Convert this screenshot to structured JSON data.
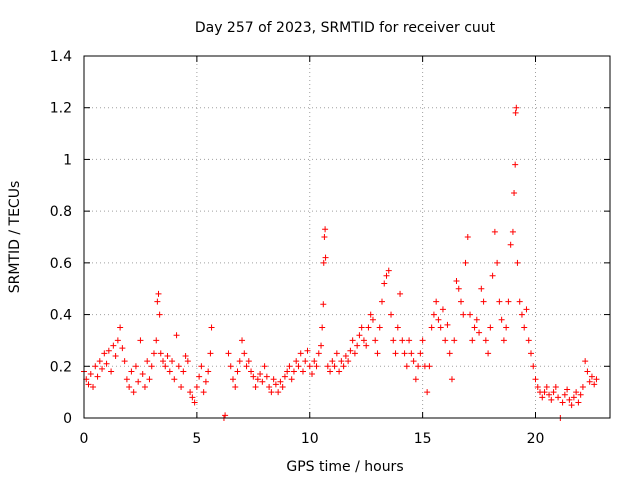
{
  "chart_data": {
    "type": "scatter",
    "title": "Day 257 of 2023, SRMTID for receiver cuut",
    "xlabel": "GPS time / hours",
    "ylabel": "SRMTID / TECUs",
    "xlim": [
      0,
      23.3
    ],
    "ylim": [
      0,
      1.4
    ],
    "xticks": [
      0,
      5,
      10,
      15,
      20
    ],
    "xtick_labels": [
      "0",
      "5",
      "10",
      "15",
      "20"
    ],
    "yticks": [
      0,
      0.2,
      0.4,
      0.6,
      0.8,
      1.0,
      1.2,
      1.4
    ],
    "ytick_labels": [
      "0",
      "0.2",
      "0.4",
      "0.6",
      "0.8",
      "1",
      "1.2",
      "1.4"
    ],
    "grid": true,
    "marker": "plus",
    "series": [
      {
        "name": "SRMTID",
        "color": "#ff0000",
        "points": [
          [
            0.0,
            0.18
          ],
          [
            0.1,
            0.15
          ],
          [
            0.2,
            0.13
          ],
          [
            0.3,
            0.17
          ],
          [
            0.4,
            0.12
          ],
          [
            0.5,
            0.2
          ],
          [
            0.6,
            0.16
          ],
          [
            0.7,
            0.22
          ],
          [
            0.8,
            0.19
          ],
          [
            0.9,
            0.25
          ],
          [
            1.0,
            0.21
          ],
          [
            1.1,
            0.26
          ],
          [
            1.2,
            0.18
          ],
          [
            1.3,
            0.28
          ],
          [
            1.4,
            0.24
          ],
          [
            1.5,
            0.3
          ],
          [
            1.6,
            0.35
          ],
          [
            1.7,
            0.27
          ],
          [
            1.8,
            0.22
          ],
          [
            1.9,
            0.15
          ],
          [
            2.0,
            0.12
          ],
          [
            2.1,
            0.18
          ],
          [
            2.2,
            0.1
          ],
          [
            2.3,
            0.2
          ],
          [
            2.4,
            0.14
          ],
          [
            2.5,
            0.3
          ],
          [
            2.6,
            0.17
          ],
          [
            2.7,
            0.12
          ],
          [
            2.8,
            0.22
          ],
          [
            2.9,
            0.15
          ],
          [
            3.0,
            0.2
          ],
          [
            3.1,
            0.25
          ],
          [
            3.2,
            0.3
          ],
          [
            3.25,
            0.45
          ],
          [
            3.3,
            0.48
          ],
          [
            3.35,
            0.4
          ],
          [
            3.4,
            0.25
          ],
          [
            3.5,
            0.22
          ],
          [
            3.6,
            0.2
          ],
          [
            3.7,
            0.24
          ],
          [
            3.8,
            0.18
          ],
          [
            3.9,
            0.22
          ],
          [
            4.0,
            0.15
          ],
          [
            4.1,
            0.32
          ],
          [
            4.2,
            0.2
          ],
          [
            4.3,
            0.12
          ],
          [
            4.4,
            0.18
          ],
          [
            4.5,
            0.24
          ],
          [
            4.6,
            0.22
          ],
          [
            4.7,
            0.1
          ],
          [
            4.8,
            0.08
          ],
          [
            4.9,
            0.06
          ],
          [
            5.0,
            0.12
          ],
          [
            5.1,
            0.16
          ],
          [
            5.2,
            0.2
          ],
          [
            5.3,
            0.1
          ],
          [
            5.4,
            0.14
          ],
          [
            5.5,
            0.18
          ],
          [
            5.6,
            0.25
          ],
          [
            5.65,
            0.35
          ],
          [
            6.2,
            0.0
          ],
          [
            6.25,
            0.01
          ],
          [
            6.4,
            0.25
          ],
          [
            6.5,
            0.2
          ],
          [
            6.6,
            0.15
          ],
          [
            6.7,
            0.12
          ],
          [
            6.8,
            0.18
          ],
          [
            6.9,
            0.22
          ],
          [
            7.0,
            0.3
          ],
          [
            7.1,
            0.25
          ],
          [
            7.2,
            0.2
          ],
          [
            7.3,
            0.22
          ],
          [
            7.4,
            0.18
          ],
          [
            7.5,
            0.16
          ],
          [
            7.6,
            0.12
          ],
          [
            7.7,
            0.15
          ],
          [
            7.8,
            0.17
          ],
          [
            7.9,
            0.14
          ],
          [
            8.0,
            0.2
          ],
          [
            8.1,
            0.16
          ],
          [
            8.2,
            0.12
          ],
          [
            8.3,
            0.1
          ],
          [
            8.4,
            0.15
          ],
          [
            8.5,
            0.13
          ],
          [
            8.6,
            0.1
          ],
          [
            8.7,
            0.14
          ],
          [
            8.8,
            0.12
          ],
          [
            8.9,
            0.16
          ],
          [
            9.0,
            0.18
          ],
          [
            9.1,
            0.2
          ],
          [
            9.2,
            0.15
          ],
          [
            9.3,
            0.18
          ],
          [
            9.4,
            0.22
          ],
          [
            9.5,
            0.2
          ],
          [
            9.6,
            0.25
          ],
          [
            9.7,
            0.18
          ],
          [
            9.8,
            0.22
          ],
          [
            9.9,
            0.26
          ],
          [
            10.0,
            0.2
          ],
          [
            10.1,
            0.17
          ],
          [
            10.2,
            0.22
          ],
          [
            10.3,
            0.2
          ],
          [
            10.4,
            0.25
          ],
          [
            10.5,
            0.28
          ],
          [
            10.55,
            0.35
          ],
          [
            10.6,
            0.44
          ],
          [
            10.62,
            0.6
          ],
          [
            10.65,
            0.7
          ],
          [
            10.68,
            0.73
          ],
          [
            10.7,
            0.62
          ],
          [
            10.8,
            0.2
          ],
          [
            10.9,
            0.18
          ],
          [
            11.0,
            0.22
          ],
          [
            11.1,
            0.2
          ],
          [
            11.2,
            0.25
          ],
          [
            11.3,
            0.18
          ],
          [
            11.4,
            0.22
          ],
          [
            11.5,
            0.2
          ],
          [
            11.6,
            0.24
          ],
          [
            11.7,
            0.22
          ],
          [
            11.8,
            0.26
          ],
          [
            11.9,
            0.3
          ],
          [
            12.0,
            0.25
          ],
          [
            12.1,
            0.28
          ],
          [
            12.2,
            0.32
          ],
          [
            12.3,
            0.35
          ],
          [
            12.4,
            0.3
          ],
          [
            12.5,
            0.28
          ],
          [
            12.6,
            0.35
          ],
          [
            12.7,
            0.4
          ],
          [
            12.8,
            0.38
          ],
          [
            12.9,
            0.3
          ],
          [
            13.0,
            0.25
          ],
          [
            13.1,
            0.35
          ],
          [
            13.2,
            0.45
          ],
          [
            13.3,
            0.52
          ],
          [
            13.4,
            0.55
          ],
          [
            13.5,
            0.57
          ],
          [
            13.6,
            0.4
          ],
          [
            13.7,
            0.3
          ],
          [
            13.8,
            0.25
          ],
          [
            13.9,
            0.35
          ],
          [
            14.0,
            0.48
          ],
          [
            14.1,
            0.3
          ],
          [
            14.2,
            0.25
          ],
          [
            14.3,
            0.2
          ],
          [
            14.4,
            0.3
          ],
          [
            14.5,
            0.25
          ],
          [
            14.6,
            0.22
          ],
          [
            14.7,
            0.15
          ],
          [
            14.8,
            0.2
          ],
          [
            14.9,
            0.25
          ],
          [
            15.0,
            0.3
          ],
          [
            15.1,
            0.2
          ],
          [
            15.2,
            0.1
          ],
          [
            15.3,
            0.2
          ],
          [
            15.4,
            0.35
          ],
          [
            15.5,
            0.4
          ],
          [
            15.6,
            0.45
          ],
          [
            15.7,
            0.38
          ],
          [
            15.8,
            0.35
          ],
          [
            15.9,
            0.42
          ],
          [
            16.0,
            0.3
          ],
          [
            16.1,
            0.36
          ],
          [
            16.2,
            0.25
          ],
          [
            16.3,
            0.15
          ],
          [
            16.4,
            0.3
          ],
          [
            16.5,
            0.53
          ],
          [
            16.6,
            0.5
          ],
          [
            16.7,
            0.45
          ],
          [
            16.8,
            0.4
          ],
          [
            16.9,
            0.6
          ],
          [
            17.0,
            0.7
          ],
          [
            17.1,
            0.4
          ],
          [
            17.2,
            0.3
          ],
          [
            17.3,
            0.35
          ],
          [
            17.4,
            0.38
          ],
          [
            17.5,
            0.33
          ],
          [
            17.6,
            0.5
          ],
          [
            17.7,
            0.45
          ],
          [
            17.8,
            0.3
          ],
          [
            17.9,
            0.25
          ],
          [
            18.0,
            0.35
          ],
          [
            18.1,
            0.55
          ],
          [
            18.2,
            0.72
          ],
          [
            18.3,
            0.6
          ],
          [
            18.4,
            0.45
          ],
          [
            18.5,
            0.38
          ],
          [
            18.6,
            0.3
          ],
          [
            18.7,
            0.35
          ],
          [
            18.8,
            0.45
          ],
          [
            18.9,
            0.67
          ],
          [
            19.0,
            0.72
          ],
          [
            19.05,
            0.87
          ],
          [
            19.1,
            0.98
          ],
          [
            19.12,
            1.18
          ],
          [
            19.15,
            1.2
          ],
          [
            19.2,
            0.6
          ],
          [
            19.3,
            0.45
          ],
          [
            19.4,
            0.4
          ],
          [
            19.5,
            0.35
          ],
          [
            19.6,
            0.42
          ],
          [
            19.7,
            0.3
          ],
          [
            19.8,
            0.25
          ],
          [
            19.9,
            0.2
          ],
          [
            20.0,
            0.15
          ],
          [
            20.1,
            0.12
          ],
          [
            20.2,
            0.1
          ],
          [
            20.3,
            0.08
          ],
          [
            20.4,
            0.1
          ],
          [
            20.5,
            0.12
          ],
          [
            20.6,
            0.09
          ],
          [
            20.7,
            0.07
          ],
          [
            20.8,
            0.1
          ],
          [
            20.9,
            0.12
          ],
          [
            21.0,
            0.08
          ],
          [
            21.1,
            0.0
          ],
          [
            21.2,
            0.06
          ],
          [
            21.3,
            0.09
          ],
          [
            21.4,
            0.11
          ],
          [
            21.5,
            0.07
          ],
          [
            21.6,
            0.05
          ],
          [
            21.7,
            0.08
          ],
          [
            21.8,
            0.1
          ],
          [
            21.9,
            0.06
          ],
          [
            22.0,
            0.09
          ],
          [
            22.1,
            0.12
          ],
          [
            22.2,
            0.22
          ],
          [
            22.3,
            0.18
          ],
          [
            22.4,
            0.14
          ],
          [
            22.5,
            0.16
          ],
          [
            22.6,
            0.13
          ],
          [
            22.7,
            0.15
          ]
        ]
      }
    ]
  }
}
